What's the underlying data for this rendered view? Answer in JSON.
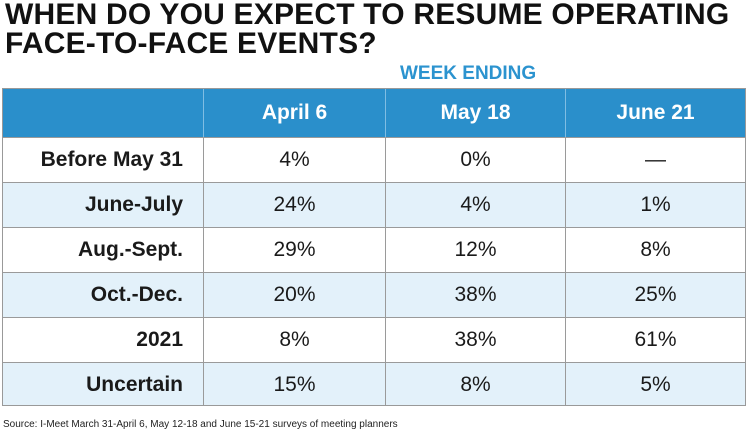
{
  "chart_data": {
    "type": "table",
    "title": "WHEN DO YOU EXPECT TO RESUME OPERATING FACE-TO-FACE EVENTS?",
    "subtitle": "WEEK ENDING",
    "columns": [
      "April 6",
      "May 18",
      "June 21"
    ],
    "rows": [
      {
        "label": "Before May 31",
        "values": [
          "4%",
          "0%",
          "—"
        ]
      },
      {
        "label": "June-July",
        "values": [
          "24%",
          "4%",
          "1%"
        ]
      },
      {
        "label": "Aug.-Sept.",
        "values": [
          "29%",
          "12%",
          "8%"
        ]
      },
      {
        "label": "Oct.-Dec.",
        "values": [
          "20%",
          "38%",
          "25%"
        ]
      },
      {
        "label": "2021",
        "values": [
          "8%",
          "38%",
          "61%"
        ]
      },
      {
        "label": "Uncertain",
        "values": [
          "15%",
          "8%",
          "5%"
        ]
      }
    ],
    "source": "Source: I-Meet March 31-April 6, May 12-18 and June 15-21 surveys of meeting planners"
  },
  "colors": {
    "header_bg": "#2a8fcb",
    "subtitle": "#2b93cf",
    "alt_row_bg": "#e3f1fa"
  }
}
